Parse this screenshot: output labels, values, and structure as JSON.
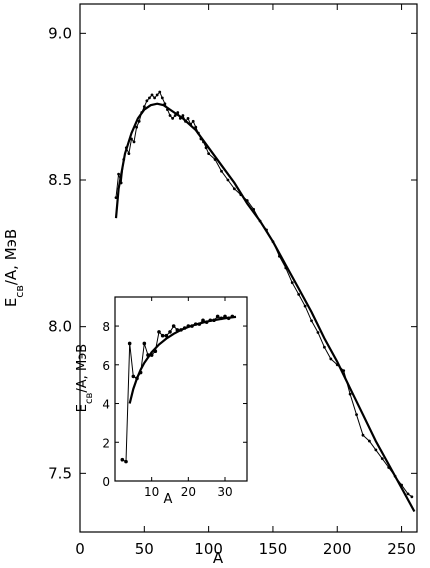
{
  "chart_data": [
    {
      "type": "line",
      "title": "",
      "xlabel": "A",
      "ylabel_main": "E",
      "ylabel_sub": "св",
      "ylabel_rest": "/A, МэВ",
      "xlim": [
        0,
        262
      ],
      "ylim": [
        7.3,
        9.1
      ],
      "xticks": [
        0,
        50,
        100,
        150,
        200,
        250
      ],
      "yticks": [
        7.5,
        8.0,
        8.5,
        9.0
      ],
      "xtick_labels": [
        "0",
        "50",
        "100",
        "150",
        "200",
        "250"
      ],
      "ytick_labels": [
        "7.5",
        "8.0",
        "8.5",
        "9.0"
      ],
      "grid": false,
      "series": [
        {
          "kind": "experimental",
          "points": [
            [
              28,
              8.44
            ],
            [
              30,
              8.52
            ],
            [
              32,
              8.49
            ],
            [
              34,
              8.57
            ],
            [
              36,
              8.61
            ],
            [
              38,
              8.59
            ],
            [
              40,
              8.64
            ],
            [
              42,
              8.63
            ],
            [
              44,
              8.68
            ],
            [
              46,
              8.7
            ],
            [
              48,
              8.73
            ],
            [
              50,
              8.75
            ],
            [
              52,
              8.77
            ],
            [
              54,
              8.78
            ],
            [
              56,
              8.79
            ],
            [
              58,
              8.78
            ],
            [
              60,
              8.79
            ],
            [
              62,
              8.8
            ],
            [
              64,
              8.78
            ],
            [
              66,
              8.76
            ],
            [
              68,
              8.74
            ],
            [
              70,
              8.72
            ],
            [
              72,
              8.71
            ],
            [
              74,
              8.72
            ],
            [
              76,
              8.73
            ],
            [
              78,
              8.71
            ],
            [
              80,
              8.72
            ],
            [
              82,
              8.7
            ],
            [
              84,
              8.71
            ],
            [
              86,
              8.69
            ],
            [
              88,
              8.7
            ],
            [
              90,
              8.68
            ],
            [
              92,
              8.66
            ],
            [
              94,
              8.64
            ],
            [
              96,
              8.63
            ],
            [
              98,
              8.61
            ],
            [
              100,
              8.59
            ],
            [
              105,
              8.57
            ],
            [
              110,
              8.53
            ],
            [
              115,
              8.5
            ],
            [
              120,
              8.47
            ],
            [
              125,
              8.45
            ],
            [
              130,
              8.43
            ],
            [
              135,
              8.4
            ],
            [
              140,
              8.36
            ],
            [
              145,
              8.33
            ],
            [
              150,
              8.29
            ],
            [
              155,
              8.24
            ],
            [
              160,
              8.2
            ],
            [
              165,
              8.15
            ],
            [
              170,
              8.11
            ],
            [
              175,
              8.07
            ],
            [
              180,
              8.02
            ],
            [
              185,
              7.98
            ],
            [
              190,
              7.93
            ],
            [
              195,
              7.89
            ],
            [
              200,
              7.87
            ],
            [
              205,
              7.85
            ],
            [
              210,
              7.77
            ],
            [
              215,
              7.7
            ],
            [
              220,
              7.63
            ],
            [
              225,
              7.61
            ],
            [
              230,
              7.58
            ],
            [
              235,
              7.55
            ],
            [
              240,
              7.52
            ],
            [
              245,
              7.49
            ],
            [
              250,
              7.46
            ],
            [
              255,
              7.43
            ],
            [
              258,
              7.42
            ]
          ]
        },
        {
          "kind": "fit",
          "points": [
            [
              28,
              8.37
            ],
            [
              30,
              8.47
            ],
            [
              35,
              8.59
            ],
            [
              40,
              8.66
            ],
            [
              45,
              8.71
            ],
            [
              50,
              8.74
            ],
            [
              55,
              8.755
            ],
            [
              60,
              8.76
            ],
            [
              65,
              8.755
            ],
            [
              70,
              8.74
            ],
            [
              80,
              8.71
            ],
            [
              90,
              8.67
            ],
            [
              100,
              8.61
            ],
            [
              110,
              8.55
            ],
            [
              120,
              8.49
            ],
            [
              130,
              8.42
            ],
            [
              140,
              8.36
            ],
            [
              150,
              8.29
            ],
            [
              160,
              8.21
            ],
            [
              170,
              8.13
            ],
            [
              180,
              8.05
            ],
            [
              190,
              7.96
            ],
            [
              200,
              7.88
            ],
            [
              210,
              7.79
            ],
            [
              220,
              7.7
            ],
            [
              230,
              7.61
            ],
            [
              240,
              7.53
            ],
            [
              250,
              7.45
            ],
            [
              260,
              7.37
            ]
          ]
        }
      ]
    },
    {
      "type": "line",
      "title": "",
      "xlabel": "A",
      "ylabel_main": "E",
      "ylabel_sub": "св",
      "ylabel_rest": "/A, МэВ",
      "xlim": [
        0,
        36
      ],
      "ylim": [
        0,
        9.5
      ],
      "xticks": [
        10,
        20,
        30
      ],
      "yticks": [
        0,
        2,
        4,
        6,
        8
      ],
      "xtick_labels": [
        "10",
        "20",
        "30"
      ],
      "ytick_labels": [
        "0",
        "2",
        "4",
        "6",
        "8"
      ],
      "grid": false,
      "series": [
        {
          "kind": "experimental",
          "points": [
            [
              2,
              1.1
            ],
            [
              3,
              1.0
            ],
            [
              4,
              7.1
            ],
            [
              5,
              5.4
            ],
            [
              6,
              5.3
            ],
            [
              7,
              5.6
            ],
            [
              8,
              7.1
            ],
            [
              9,
              6.5
            ],
            [
              10,
              6.5
            ],
            [
              11,
              6.7
            ],
            [
              12,
              7.7
            ],
            [
              13,
              7.5
            ],
            [
              14,
              7.5
            ],
            [
              15,
              7.7
            ],
            [
              16,
              8.0
            ],
            [
              17,
              7.8
            ],
            [
              18,
              7.8
            ],
            [
              19,
              7.9
            ],
            [
              20,
              8.0
            ],
            [
              21,
              8.0
            ],
            [
              22,
              8.1
            ],
            [
              23,
              8.1
            ],
            [
              24,
              8.3
            ],
            [
              25,
              8.2
            ],
            [
              26,
              8.3
            ],
            [
              27,
              8.3
            ],
            [
              28,
              8.5
            ],
            [
              29,
              8.4
            ],
            [
              30,
              8.5
            ],
            [
              31,
              8.4
            ],
            [
              32,
              8.5
            ]
          ]
        },
        {
          "kind": "fit",
          "points": [
            [
              4,
              4.0
            ],
            [
              5,
              4.75
            ],
            [
              6,
              5.3
            ],
            [
              7,
              5.75
            ],
            [
              8,
              6.1
            ],
            [
              10,
              6.65
            ],
            [
              12,
              7.05
            ],
            [
              14,
              7.35
            ],
            [
              16,
              7.6
            ],
            [
              18,
              7.8
            ],
            [
              20,
              7.95
            ],
            [
              22,
              8.08
            ],
            [
              24,
              8.18
            ],
            [
              26,
              8.27
            ],
            [
              28,
              8.34
            ],
            [
              30,
              8.4
            ],
            [
              32,
              8.45
            ],
            [
              33,
              8.47
            ]
          ]
        }
      ]
    }
  ]
}
